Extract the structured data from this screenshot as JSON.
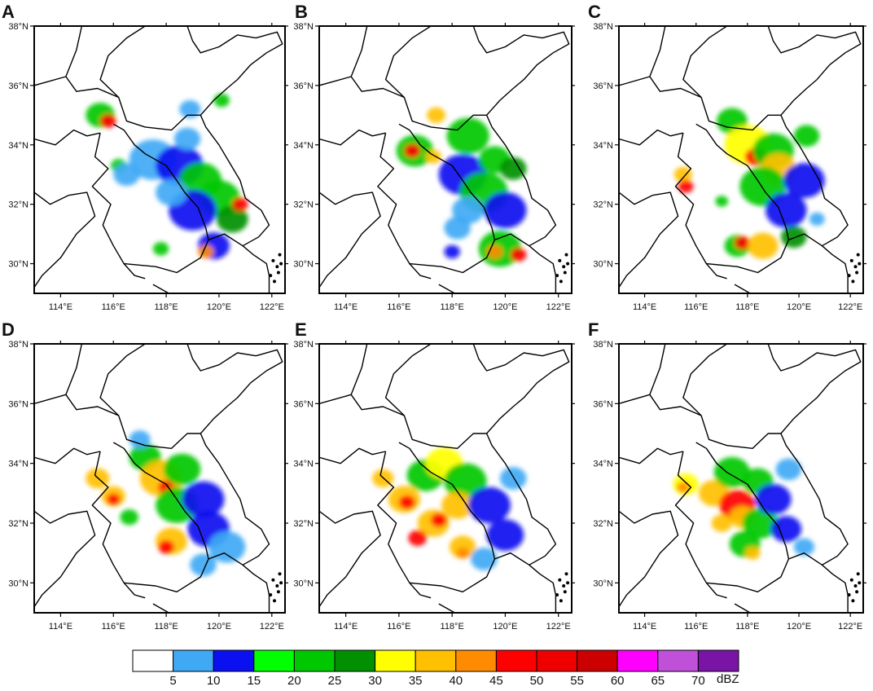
{
  "panels": [
    {
      "label": "A"
    },
    {
      "label": "B"
    },
    {
      "label": "C"
    },
    {
      "label": "D"
    },
    {
      "label": "E"
    },
    {
      "label": "F"
    }
  ],
  "map_extent": {
    "lon": [
      113.0,
      122.5
    ],
    "lat": [
      29.0,
      38.0
    ]
  },
  "lon_ticks": [
    114,
    116,
    118,
    120,
    122
  ],
  "lat_ticks": [
    30,
    32,
    34,
    36,
    38
  ],
  "lon_tick_labels": [
    "114°E",
    "116°E",
    "118°E",
    "120°E",
    "122°E"
  ],
  "lat_tick_labels": [
    "30°N",
    "32°N",
    "34°N",
    "36°N",
    "38°N"
  ],
  "colorbar": {
    "unit": "dBZ",
    "colors": [
      "#ffffff",
      "#3fa9f5",
      "#0a10f0",
      "#00ff00",
      "#00c800",
      "#009000",
      "#ffff00",
      "#ffc000",
      "#ff8c00",
      "#ff0000",
      "#ee0000",
      "#cc0000",
      "#ff00ff",
      "#c050d8",
      "#7a14a6"
    ],
    "labels": [
      "5",
      "10",
      "15",
      "20",
      "25",
      "30",
      "35",
      "40",
      "45",
      "50",
      "55",
      "60",
      "65",
      "70"
    ]
  }
}
